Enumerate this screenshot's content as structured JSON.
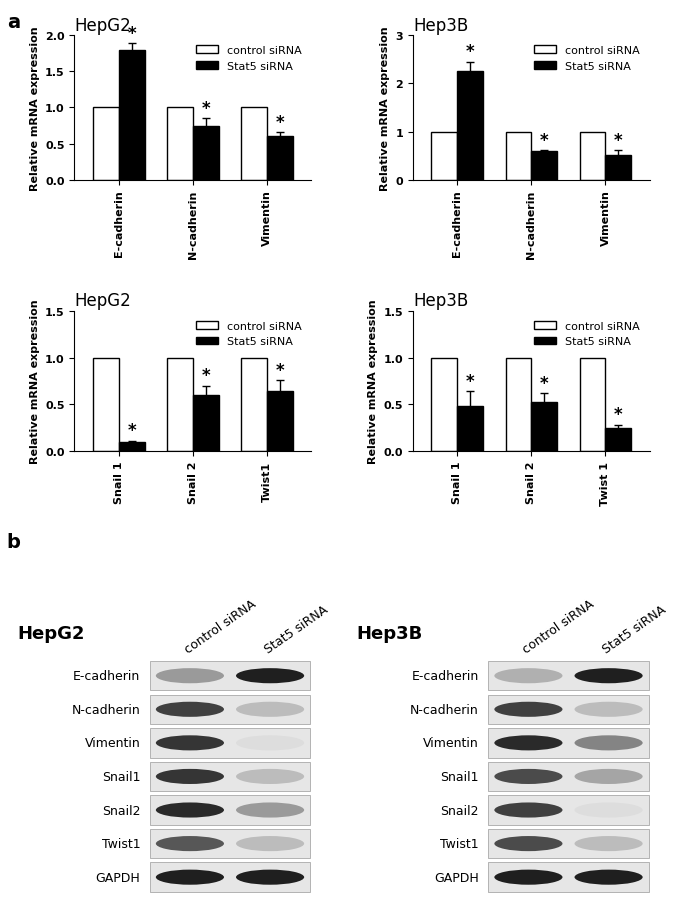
{
  "chart_data": [
    {
      "type": "bar",
      "title": "HepG2",
      "y_label": "Relative mRNA expression",
      "categories": [
        "E-cadherin",
        "N-cadherin",
        "Vimentin"
      ],
      "series": [
        {
          "name": "control siRNA",
          "color": "#ffffff",
          "values": [
            1,
            1,
            1
          ]
        },
        {
          "name": "Stat5 siRNA",
          "color": "#000000",
          "values": [
            1.8,
            0.75,
            0.6
          ],
          "errors": [
            0.09,
            0.1,
            0.06
          ],
          "annotations": [
            "*",
            "*",
            "*"
          ]
        }
      ],
      "ylim": [
        0,
        2.0
      ],
      "yticks": [
        {
          "value": 0,
          "label": "0.0"
        },
        {
          "value": 0.5,
          "label": "0.5"
        },
        {
          "value": 1.0,
          "label": "1.0"
        },
        {
          "value": 1.5,
          "label": "1.5"
        },
        {
          "value": 2.0,
          "label": "2.0"
        }
      ],
      "legend": "upper right"
    },
    {
      "type": "bar",
      "title": "Hep3B",
      "y_label": "Relative mRNA expression",
      "categories": [
        "E-cadherin",
        "N-cadherin",
        "Vimentin"
      ],
      "series": [
        {
          "name": "control siRNA",
          "color": "#ffffff",
          "values": [
            1,
            1,
            1
          ]
        },
        {
          "name": "Stat5 siRNA",
          "color": "#000000",
          "values": [
            2.25,
            0.6,
            0.52
          ],
          "errors": [
            0.2,
            0.02,
            0.1
          ],
          "annotations": [
            "*",
            "*",
            "*"
          ]
        }
      ],
      "ylim": [
        0,
        3
      ],
      "yticks": [
        0,
        1,
        2,
        3
      ],
      "legend": "upper right"
    },
    {
      "type": "bar",
      "title": "HepG2",
      "y_label": "Relative mRNA expression",
      "categories": [
        "Snail 1",
        "Snail 2",
        "Twist1"
      ],
      "series": [
        {
          "name": "control siRNA",
          "color": "#ffffff",
          "values": [
            1,
            1,
            1
          ]
        },
        {
          "name": "Stat5 siRNA",
          "color": "#000000",
          "values": [
            0.1,
            0.6,
            0.64
          ],
          "errors": [
            0.01,
            0.1,
            0.12
          ],
          "annotations": [
            "*",
            "*",
            "*"
          ]
        }
      ],
      "ylim": [
        0,
        1.5
      ],
      "yticks": [
        {
          "value": 0,
          "label": "0.0"
        },
        {
          "value": 0.5,
          "label": "0.5"
        },
        {
          "value": 1.0,
          "label": "1.0"
        },
        {
          "value": 1.5,
          "label": "1.5"
        }
      ],
      "legend": "upper right"
    },
    {
      "type": "bar",
      "title": "Hep3B",
      "y_label": "Relative mRNA expression",
      "categories": [
        "Snail 1",
        "Snail 2",
        "Twist 1"
      ],
      "series": [
        {
          "name": "control siRNA",
          "color": "#ffffff",
          "values": [
            1,
            1,
            1
          ]
        },
        {
          "name": "Stat5 siRNA",
          "color": "#000000",
          "values": [
            0.48,
            0.52,
            0.25
          ],
          "errors": [
            0.16,
            0.1,
            0.03
          ],
          "annotations": [
            "*",
            "*",
            "*"
          ]
        }
      ],
      "ylim": [
        0,
        1.5
      ],
      "yticks": [
        {
          "value": 0,
          "label": "0.0"
        },
        {
          "value": 0.5,
          "label": "0.5"
        },
        {
          "value": 1.0,
          "label": "1.0"
        },
        {
          "value": 1.5,
          "label": "1.5"
        }
      ],
      "legend": "upper right"
    }
  ],
  "panel_labels": [
    "a",
    "b"
  ],
  "western_blot": [
    {
      "title": "HepG2",
      "lanes": [
        "control siRNA",
        "Stat5 siRNA"
      ],
      "rows": [
        {
          "protein": "E-cadherin",
          "intensity": [
            0.45,
            1.0
          ]
        },
        {
          "protein": "N-cadherin",
          "intensity": [
            0.85,
            0.3
          ]
        },
        {
          "protein": "Vimentin",
          "intensity": [
            0.9,
            0.15
          ]
        },
        {
          "protein": "Snail1",
          "intensity": [
            0.9,
            0.3
          ]
        },
        {
          "protein": "Snail2",
          "intensity": [
            0.95,
            0.45
          ]
        },
        {
          "protein": "Twist1",
          "intensity": [
            0.75,
            0.3
          ]
        },
        {
          "protein": "GAPDH",
          "intensity": [
            1.0,
            1.0
          ]
        }
      ]
    },
    {
      "title": "Hep3B",
      "lanes": [
        "control siRNA",
        "Stat5 siRNA"
      ],
      "rows": [
        {
          "protein": "E-cadherin",
          "intensity": [
            0.35,
            1.0
          ]
        },
        {
          "protein": "N-cadherin",
          "intensity": [
            0.85,
            0.3
          ]
        },
        {
          "protein": "Vimentin",
          "intensity": [
            0.95,
            0.55
          ]
        },
        {
          "protein": "Snail1",
          "intensity": [
            0.8,
            0.4
          ]
        },
        {
          "protein": "Snail2",
          "intensity": [
            0.85,
            0.15
          ]
        },
        {
          "protein": "Twist1",
          "intensity": [
            0.8,
            0.3
          ]
        },
        {
          "protein": "GAPDH",
          "intensity": [
            1.0,
            1.0
          ]
        }
      ]
    }
  ]
}
